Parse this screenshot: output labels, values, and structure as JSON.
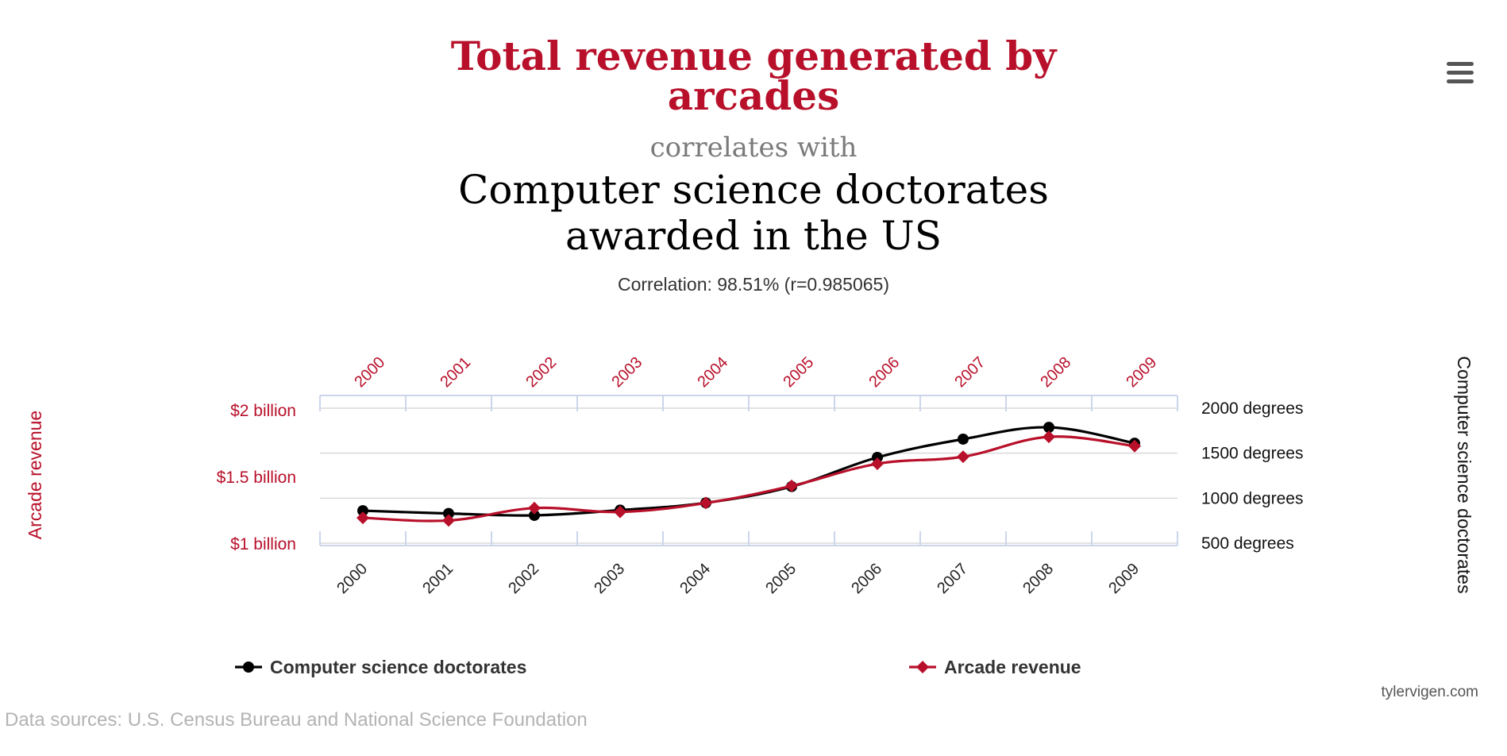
{
  "header": {
    "title_line1": "Total revenue generated by",
    "title_line2": "arcades",
    "connector": "correlates with",
    "subtitle_line1": "Computer science doctorates",
    "subtitle_line2": "awarded in the US",
    "correlation": "Correlation: 98.51% (r=0.985065)"
  },
  "menu": {
    "icon": "hamburger-menu-icon"
  },
  "footer": {
    "sources": "Data sources: U.S. Census Bureau and National Science Foundation",
    "site": "tylervigen.com"
  },
  "colors": {
    "arcade": "#b8102a",
    "doctorates": "#000000",
    "grid": "#d9d9d9",
    "axis": "#ccd6eb"
  },
  "chart_data": {
    "type": "line",
    "categories": [
      "2000",
      "2001",
      "2002",
      "2003",
      "2004",
      "2005",
      "2006",
      "2007",
      "2008",
      "2009"
    ],
    "left_axis": {
      "title": "Arcade revenue",
      "ticks": [
        {
          "value": 2.0,
          "label": "$2 billion"
        },
        {
          "value": 1.5,
          "label": "$1.5 billion"
        },
        {
          "value": 1.0,
          "label": "$1 billion"
        }
      ],
      "range": [
        1.0,
        2.0
      ]
    },
    "right_axis": {
      "title": "Computer science doctorates",
      "ticks": [
        {
          "value": 2000,
          "label": "2000 degrees"
        },
        {
          "value": 1500,
          "label": "1500 degrees"
        },
        {
          "value": 1000,
          "label": "1000 degrees"
        },
        {
          "value": 500,
          "label": "500 degrees"
        }
      ],
      "range": [
        500,
        2000
      ]
    },
    "series": [
      {
        "name": "Computer science doctorates",
        "axis": "right",
        "marker": "circle",
        "values": [
          861,
          830,
          809,
          867,
          948,
          1129,
          1453,
          1656,
          1787,
          1611
        ]
      },
      {
        "name": "Arcade revenue",
        "axis": "left",
        "marker": "diamond",
        "values": [
          1.196,
          1.176,
          1.269,
          1.24,
          1.307,
          1.435,
          1.601,
          1.654,
          1.803,
          1.734
        ]
      }
    ],
    "grid": true,
    "legend": "bottom"
  }
}
